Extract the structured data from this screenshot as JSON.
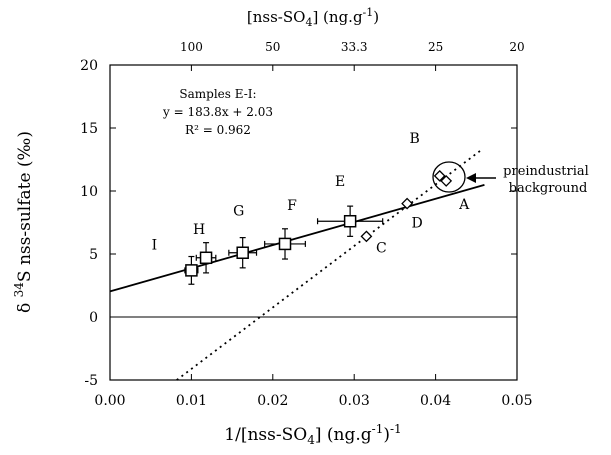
{
  "chart_data": {
    "type": "scatter",
    "title": "",
    "xlabel": "1/[nss-SO4] (ng.g-1)-1",
    "ylabel": "δ 34S nss-sulfate (‰)",
    "top_axis_label": "[nss-SO4] (ng.g-1)",
    "xlim": [
      0.0,
      0.05
    ],
    "ylim": [
      -5,
      20
    ],
    "x_ticks": [
      "0.00",
      "0.01",
      "0.02",
      "0.03",
      "0.04",
      "0.05"
    ],
    "y_ticks": [
      "-5",
      "0",
      "5",
      "10",
      "15",
      "20"
    ],
    "top_ticks": [
      {
        "x": 0.01,
        "label": "100"
      },
      {
        "x": 0.02,
        "label": "50"
      },
      {
        "x": 0.03,
        "label": "33.3"
      },
      {
        "x": 0.04,
        "label": "25"
      },
      {
        "x": 0.05,
        "label": "20"
      }
    ],
    "zero_line": true,
    "series": [
      {
        "marker": "open-square",
        "points": [
          {
            "label": "I",
            "x": 0.01,
            "y": 3.7,
            "xerr": 0.0008,
            "yerr": 1.1
          },
          {
            "label": "H",
            "x": 0.0118,
            "y": 4.7,
            "xerr": 0.0012,
            "yerr": 1.2
          },
          {
            "label": "G",
            "x": 0.0163,
            "y": 5.1,
            "xerr": 0.0017,
            "yerr": 1.2
          },
          {
            "label": "F",
            "x": 0.0215,
            "y": 5.8,
            "xerr": 0.0025,
            "yerr": 1.2
          },
          {
            "label": "E",
            "x": 0.0295,
            "y": 7.6,
            "xerr": 0.004,
            "yerr": 1.2
          }
        ]
      },
      {
        "marker": "open-diamond",
        "points": [
          {
            "label": "C",
            "x": 0.0315,
            "y": 6.4
          },
          {
            "label": "D",
            "x": 0.0365,
            "y": 9.0
          },
          {
            "label": "B",
            "x": 0.0405,
            "y": 11.2
          },
          {
            "label": "A",
            "x": 0.0413,
            "y": 10.8
          }
        ]
      }
    ],
    "fit_line": {
      "slope": 183.8,
      "intercept": 2.03,
      "x_range": [
        0.0,
        0.046
      ],
      "style": "solid"
    },
    "reference_line": {
      "x_range": [
        0.0082,
        0.0455
      ],
      "y_range": [
        -5,
        13.2
      ],
      "style": "dotted"
    },
    "annotation_box": {
      "line1": "Samples E-I:",
      "line2": "y = 183.8x + 2.03",
      "line3": "R² = 0.962"
    },
    "callout": {
      "line1": "preindustrial",
      "line2": "background"
    }
  }
}
